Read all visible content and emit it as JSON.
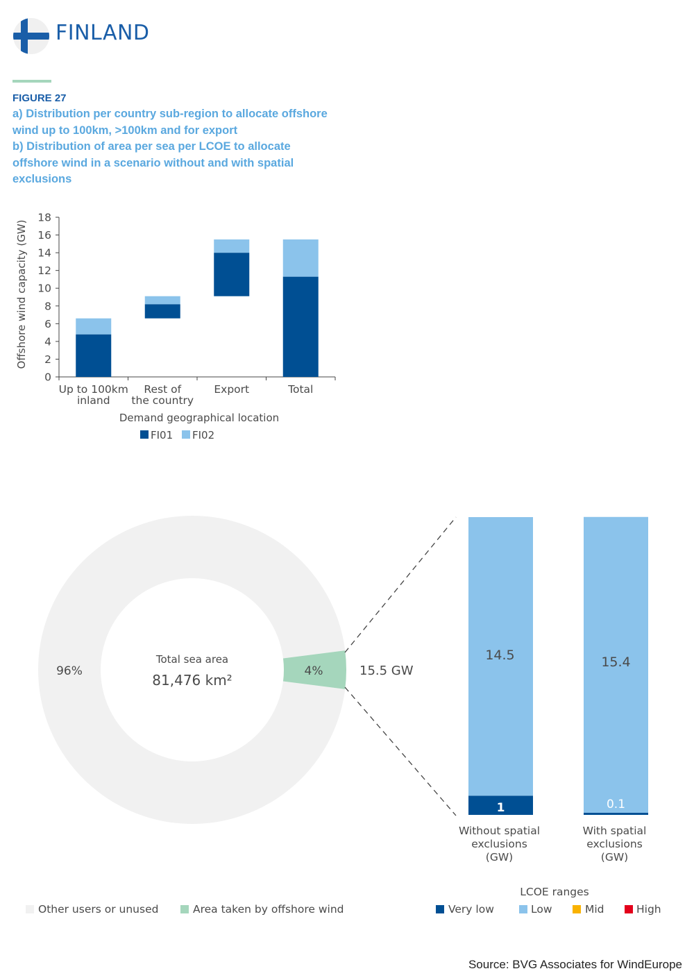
{
  "header": {
    "country": "FINLAND",
    "figure_label": "FIGURE 27",
    "caption_lines": [
      "a) Distribution per country sub-region to allocate offshore",
      "wind up to 100km, >100km and for export",
      "b) Distribution of area per sea per LCOE to allocate",
      "offshore wind in a scenario without and with spatial",
      "exclusions"
    ]
  },
  "colors": {
    "FI01": "#004f93",
    "FI02": "#8bc3eb",
    "very_low": "#004f93",
    "low": "#8bc3eb",
    "mid": "#f9b200",
    "high": "#e3001b",
    "other_area": "#f1f1f1",
    "offshore_area": "#a5d6bc",
    "title_blue": "#1a5ea8",
    "caption_blue": "#5aa8df"
  },
  "chart_data": [
    {
      "type": "bar",
      "stacked": "floating",
      "categories": [
        "Up to 100km inland",
        "Rest of the country",
        "Export",
        "Total"
      ],
      "series": [
        {
          "name": "FI01",
          "values": [
            4.8,
            1.6,
            4.9,
            11.3
          ]
        },
        {
          "name": "FI02",
          "values": [
            1.8,
            0.9,
            1.5,
            4.2
          ]
        }
      ],
      "bar_base": [
        0,
        6.6,
        9.1,
        0
      ],
      "ylabel": "Offshore wind capacity (GW)",
      "xlabel": "Demand geographical location",
      "ylim": [
        0,
        18
      ],
      "yticks": [
        0,
        2,
        4,
        6,
        8,
        10,
        12,
        14,
        16,
        18
      ],
      "tick_labels": [
        [
          "Up to 100km",
          "inland"
        ],
        [
          "Rest of",
          "the country"
        ],
        [
          "Export"
        ],
        [
          "Total"
        ]
      ],
      "legend": [
        "FI01",
        "FI02"
      ],
      "legend_position": "bottom",
      "grid": false
    },
    {
      "type": "pie",
      "center_title": "Total sea area",
      "center_value": "81,476 km²",
      "slices": [
        {
          "name": "Other users or unused",
          "value": 96,
          "label": "96%"
        },
        {
          "name": "Area taken by offshore wind",
          "value": 4,
          "label": "4%"
        }
      ],
      "callout": "15.5 GW",
      "legend_position": "bottom"
    },
    {
      "type": "bar",
      "stacked": true,
      "categories": [
        "Without spatial exclusions (GW)",
        "With spatial exclusions (GW)"
      ],
      "tick_labels": [
        [
          "Without spatial",
          "exclusions",
          "(GW)"
        ],
        [
          "With spatial",
          "exclusions",
          "(GW)"
        ]
      ],
      "series": [
        {
          "name": "Very low",
          "values": [
            1,
            0.1
          ],
          "labels": [
            "1",
            "0.1"
          ]
        },
        {
          "name": "Low",
          "values": [
            14.5,
            15.4
          ],
          "labels": [
            "14.5",
            "15.4"
          ]
        },
        {
          "name": "Mid",
          "values": [
            0,
            0
          ]
        },
        {
          "name": "High",
          "values": [
            0,
            0
          ]
        }
      ],
      "legend_title": "LCOE ranges",
      "legend": [
        "Very low",
        "Low",
        "Mid",
        "High"
      ],
      "legend_position": "bottom"
    }
  ],
  "source": "Source: BVG Associates for WindEurope"
}
